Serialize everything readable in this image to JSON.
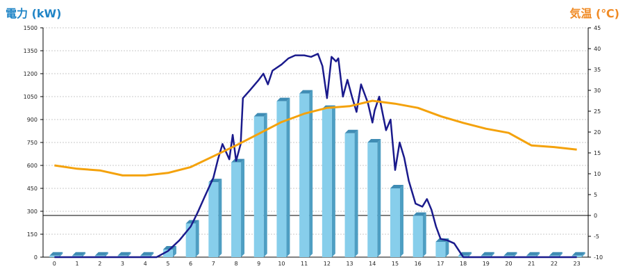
{
  "chart_data": {
    "type": "bar+line",
    "left_axis": {
      "label": "電力 (kW)",
      "color": "#1F84C6",
      "range": [
        0,
        1500
      ],
      "ticks": [
        0,
        150,
        300,
        450,
        600,
        750,
        900,
        1050,
        1200,
        1350,
        1500
      ]
    },
    "right_axis": {
      "label": "気温 (℃)",
      "color": "#F08A24",
      "range": [
        -10,
        45
      ],
      "ticks": [
        -10,
        -5,
        0,
        5,
        10,
        15,
        20,
        25,
        30,
        35,
        40,
        45
      ]
    },
    "x_axis": {
      "categories": [
        "0",
        "1",
        "2",
        "3",
        "4",
        "5",
        "6",
        "7",
        "8",
        "9",
        "10",
        "11",
        "12",
        "13",
        "14",
        "15",
        "16",
        "17",
        "18",
        "19",
        "20",
        "21",
        "22",
        "23"
      ]
    },
    "grid": true,
    "series": [
      {
        "type": "bar",
        "axis": "left",
        "color": "#87CEEB",
        "values": [
          10,
          10,
          10,
          10,
          10,
          50,
          220,
          490,
          620,
          920,
          1020,
          1070,
          970,
          810,
          750,
          450,
          270,
          100,
          10,
          10,
          10,
          10,
          10,
          10
        ]
      },
      {
        "type": "line",
        "axis": "left",
        "color": "#1A1A8C",
        "points": [
          [
            0,
            0
          ],
          [
            4.5,
            0
          ],
          [
            5,
            40
          ],
          [
            5.5,
            110
          ],
          [
            6,
            200
          ],
          [
            6.3,
            290
          ],
          [
            6.6,
            390
          ],
          [
            7,
            520
          ],
          [
            7.2,
            640
          ],
          [
            7.4,
            740
          ],
          [
            7.7,
            640
          ],
          [
            7.85,
            800
          ],
          [
            8,
            630
          ],
          [
            8.2,
            740
          ],
          [
            8.3,
            1040
          ],
          [
            8.6,
            1090
          ],
          [
            9,
            1160
          ],
          [
            9.2,
            1200
          ],
          [
            9.4,
            1130
          ],
          [
            9.6,
            1220
          ],
          [
            10,
            1260
          ],
          [
            10.3,
            1300
          ],
          [
            10.6,
            1320
          ],
          [
            11,
            1320
          ],
          [
            11.3,
            1310
          ],
          [
            11.6,
            1330
          ],
          [
            11.8,
            1250
          ],
          [
            12,
            1040
          ],
          [
            12.2,
            1310
          ],
          [
            12.4,
            1280
          ],
          [
            12.5,
            1300
          ],
          [
            12.7,
            1050
          ],
          [
            12.9,
            1160
          ],
          [
            13.1,
            1050
          ],
          [
            13.3,
            950
          ],
          [
            13.5,
            1130
          ],
          [
            13.8,
            1010
          ],
          [
            14,
            880
          ],
          [
            14.1,
            960
          ],
          [
            14.3,
            1050
          ],
          [
            14.6,
            830
          ],
          [
            14.8,
            900
          ],
          [
            15,
            570
          ],
          [
            15.2,
            750
          ],
          [
            15.4,
            650
          ],
          [
            15.6,
            500
          ],
          [
            15.9,
            350
          ],
          [
            16.2,
            330
          ],
          [
            16.4,
            380
          ],
          [
            16.6,
            310
          ],
          [
            16.8,
            200
          ],
          [
            17,
            120
          ],
          [
            17.3,
            110
          ],
          [
            17.6,
            90
          ],
          [
            18,
            0
          ],
          [
            23,
            0
          ]
        ]
      },
      {
        "type": "line",
        "axis": "right",
        "color": "#F4A20C",
        "points": [
          [
            0,
            12
          ],
          [
            1,
            11.2
          ],
          [
            2,
            10.8
          ],
          [
            3,
            9.6
          ],
          [
            4,
            9.6
          ],
          [
            5,
            10.2
          ],
          [
            6,
            11.6
          ],
          [
            7,
            14.2
          ],
          [
            8,
            16.8
          ],
          [
            9,
            19.6
          ],
          [
            10,
            22.4
          ],
          [
            11,
            24.4
          ],
          [
            12,
            25.8
          ],
          [
            13,
            26.2
          ],
          [
            14,
            27.5
          ],
          [
            15,
            26.8
          ],
          [
            16,
            25.8
          ],
          [
            17,
            23.8
          ],
          [
            18,
            22.2
          ],
          [
            19,
            20.8
          ],
          [
            20,
            19.8
          ],
          [
            21,
            16.8
          ],
          [
            22,
            16.4
          ],
          [
            23,
            15.8
          ]
        ]
      }
    ]
  }
}
